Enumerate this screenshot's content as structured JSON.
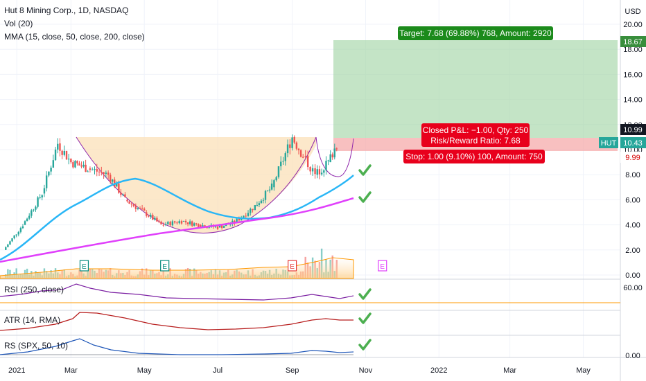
{
  "header": {
    "symbol_line": "Hut 8 Mining Corp., 1D, NASDAQ",
    "vol_line": "Vol (20)",
    "mma_line": "MMA (15, close, 50, close, 200, close)"
  },
  "axis": {
    "currency": "USD",
    "price_ticks": [
      "20.00",
      "18.00",
      "16.00",
      "14.00",
      "12.00",
      "10.00",
      "8.00",
      "6.00",
      "4.00",
      "2.00",
      "0.00"
    ],
    "date_ticks": [
      "2021",
      "Mar",
      "May",
      "Jul",
      "Sep",
      "Nov",
      "2022",
      "Mar",
      "May"
    ],
    "rsi_tick": "60.00",
    "rs_tick": "0.00"
  },
  "price_labels": {
    "target": "18.67",
    "entry": "10.99",
    "ticker": "HUT",
    "last": "10.43",
    "stop": "9.99"
  },
  "position": {
    "target_text": "Target: 7.68 (69.88%) 768, Amount: 2920",
    "closed_text": "Closed P&L: −1.00, Qty: 250",
    "ratio_text": "Risk/Reward Ratio: 7.68",
    "stop_text": "Stop: 1.00 (9.10%) 100, Amount: 750",
    "entry": 10.99,
    "target": 18.67,
    "stop": 9.99
  },
  "earnings_marker": "E",
  "indicators": {
    "rsi_label": "RSI (250, close)",
    "atr_label": "ATR (14, RMA)",
    "rs_label": "RS (SPX, 50, 10)"
  },
  "colors": {
    "up": "#26a69a",
    "down": "#ef5350",
    "ma_fast": "#8e24aa",
    "ma_50": "#29b6f6",
    "ma_200": "#e040fb",
    "target_zone": "#a5d6a7",
    "stop_zone": "#f5a5a5",
    "cup_fill": "#fbe0b8",
    "check": "#4caf50",
    "rsi": "#7b1fa2",
    "atr": "#b71c1c",
    "rs": "#1e56b8"
  },
  "chart_data": {
    "type": "candlestick",
    "x_range": [
      "2021-01-01",
      "2022-05-31"
    ],
    "ylim": [
      0,
      20
    ],
    "ohlc_points": [
      {
        "date": "2021-01-04",
        "close": 2.0
      },
      {
        "date": "2021-01-20",
        "close": 4.0
      },
      {
        "date": "2021-02-05",
        "close": 6.5
      },
      {
        "date": "2021-02-18",
        "close": 10.5
      },
      {
        "date": "2021-03-01",
        "close": 9.0
      },
      {
        "date": "2021-03-15",
        "close": 8.5
      },
      {
        "date": "2021-04-01",
        "close": 8.0
      },
      {
        "date": "2021-04-15",
        "close": 6.0
      },
      {
        "date": "2021-05-01",
        "close": 5.0
      },
      {
        "date": "2021-05-15",
        "close": 4.0
      },
      {
        "date": "2021-06-01",
        "close": 4.3
      },
      {
        "date": "2021-06-15",
        "close": 4.0
      },
      {
        "date": "2021-07-01",
        "close": 3.8
      },
      {
        "date": "2021-07-15",
        "close": 4.2
      },
      {
        "date": "2021-08-01",
        "close": 5.5
      },
      {
        "date": "2021-08-15",
        "close": 7.0
      },
      {
        "date": "2021-09-01",
        "close": 11.0
      },
      {
        "date": "2021-09-10",
        "close": 9.5
      },
      {
        "date": "2021-09-20",
        "close": 8.0
      },
      {
        "date": "2021-10-01",
        "close": 9.0
      },
      {
        "date": "2021-10-08",
        "close": 10.43
      }
    ],
    "series": [
      {
        "name": "MMA 50",
        "values": [
          [
            "2021-01-04",
            1.2
          ],
          [
            "2021-02-18",
            3.5
          ],
          [
            "2021-04-01",
            7.5
          ],
          [
            "2021-05-15",
            4.5
          ],
          [
            "2021-07-01",
            4.0
          ],
          [
            "2021-08-15",
            4.6
          ],
          [
            "2021-09-20",
            6.8
          ],
          [
            "2021-10-08",
            7.8
          ]
        ]
      },
      {
        "name": "MMA 200",
        "values": [
          [
            "2021-01-04",
            0.7
          ],
          [
            "2021-04-01",
            2.5
          ],
          [
            "2021-07-01",
            3.7
          ],
          [
            "2021-08-15",
            4.5
          ],
          [
            "2021-10-08",
            6.0
          ]
        ]
      }
    ],
    "earnings_dates": [
      "2021-03-12",
      "2021-05-18",
      "2021-09-01",
      "2021-11-15"
    ]
  }
}
